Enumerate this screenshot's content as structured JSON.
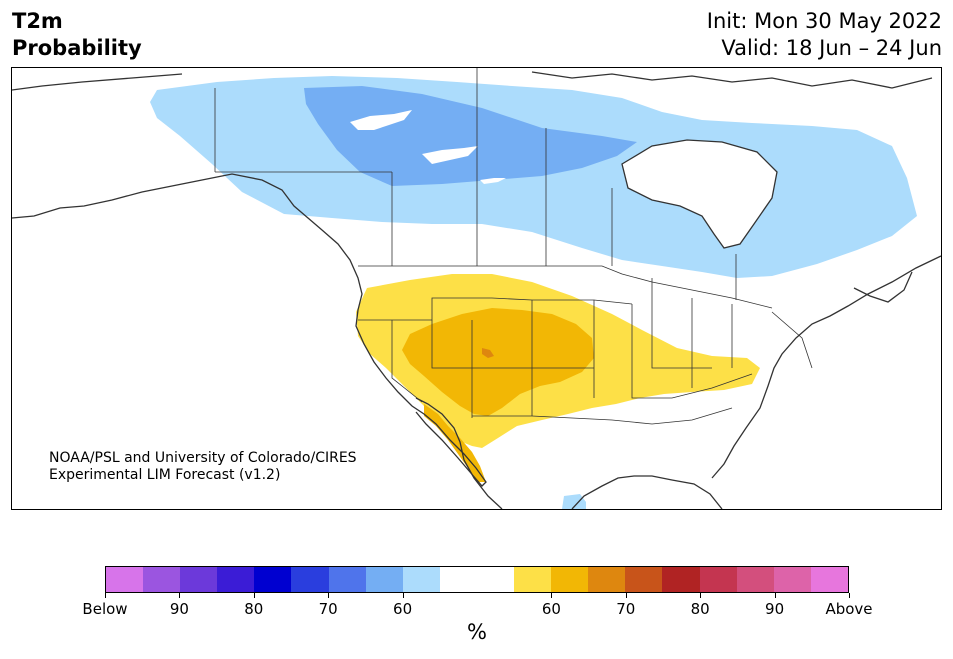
{
  "title": {
    "left_line1": "T2m",
    "left_line2": "Probability",
    "right_line1": "Init: Mon 30 May 2022",
    "right_line2": "Valid: 18 Jun – 24 Jun"
  },
  "credit": {
    "line1": "NOAA/PSL and University of Colorado/CIRES",
    "line2": "Experimental LIM Forecast (v1.2)"
  },
  "colorbar": {
    "unit": "%",
    "colors": [
      "#d774ea",
      "#9b55e0",
      "#6c39da",
      "#3b1cd6",
      "#0000d0",
      "#2a3ede",
      "#4f74eb",
      "#74aef3",
      "#acdcfc",
      "#ffffff",
      "#ffffff",
      "#fde047",
      "#f2b705",
      "#de870f",
      "#c8541a",
      "#b02323",
      "#c43550",
      "#d34f7d",
      "#dd63a9",
      "#e776dd"
    ],
    "labels": [
      "Below",
      "90",
      "80",
      "70",
      "60",
      "60",
      "70",
      "80",
      "90",
      "Above"
    ]
  },
  "map": {
    "region": "North America",
    "colors": {
      "cold_60": "#acdcfc",
      "cold_70": "#74aef3",
      "warm_60": "#fde047",
      "warm_70": "#f2b705",
      "warm_80": "#de870f",
      "coast": "#333333",
      "water": "#ffffff"
    }
  }
}
